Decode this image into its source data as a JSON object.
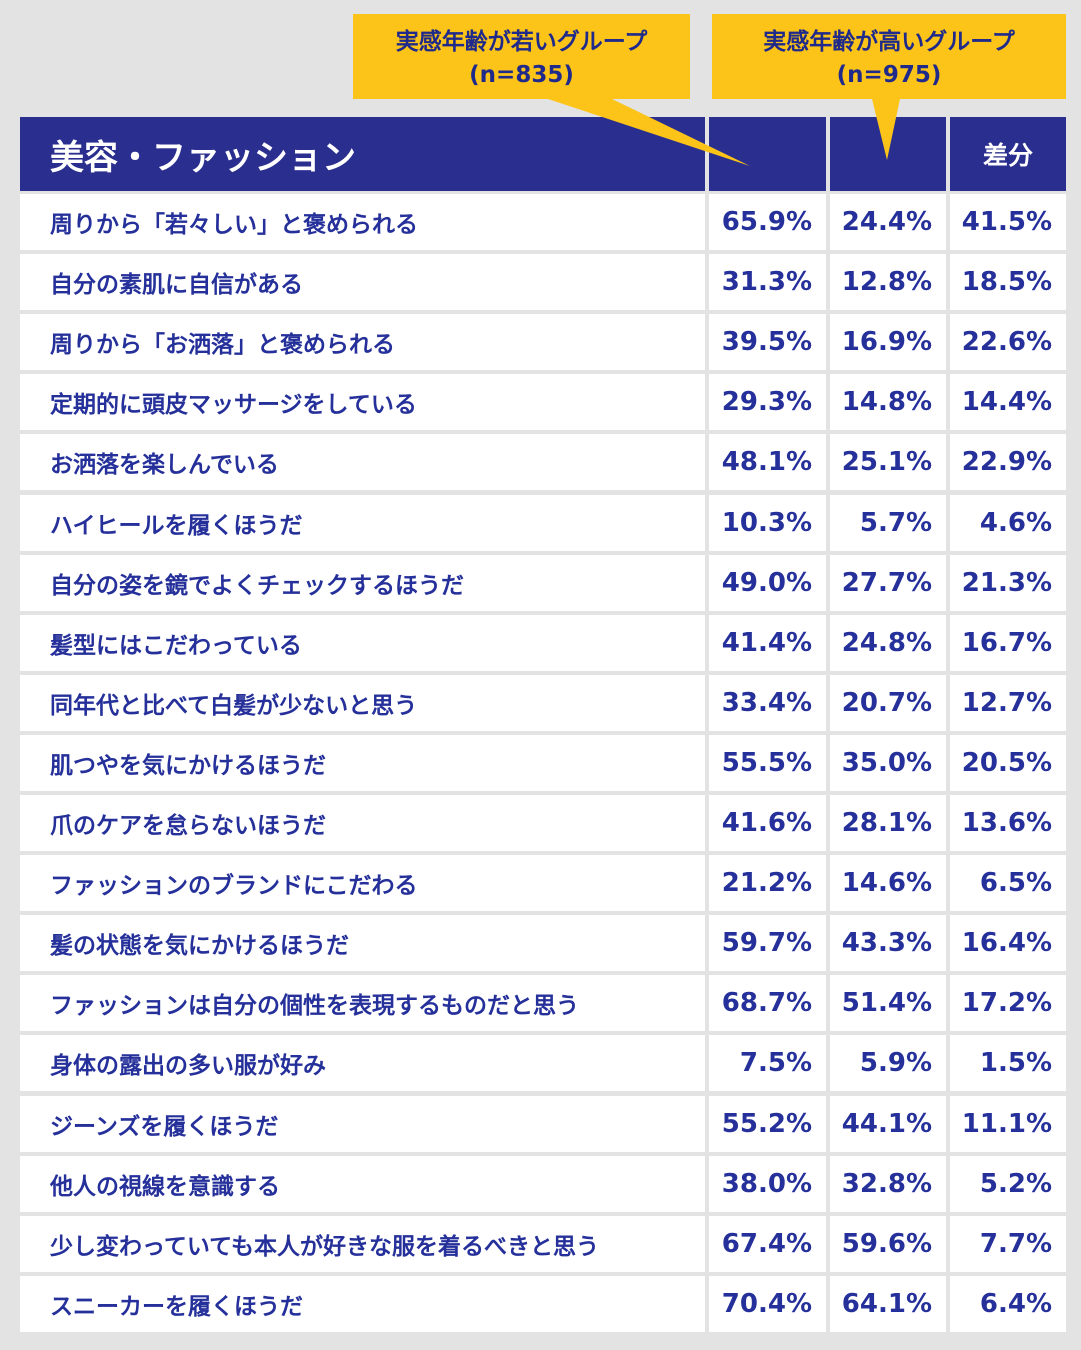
{
  "callouts": {
    "young": {
      "line1": "実感年齢が若いグループ",
      "line2": "(n=835)"
    },
    "old": {
      "line1": "実感年齢が高いグループ",
      "line2": "(n=975)"
    }
  },
  "colors": {
    "header_bg": "#2a2e8f",
    "text": "#25309a",
    "callout_bg": "#fcc419",
    "page_bg": "#e3e3e3",
    "cell_bg": "#ffffff"
  },
  "chart_data": {
    "type": "table",
    "title": "美容・ファッション",
    "columns": [
      "実感年齢が若いグループ(n=835)",
      "実感年齢が高いグループ(n=975)",
      "差分"
    ],
    "header": {
      "diff": "差分"
    },
    "rows": [
      {
        "label": "周りから「若々しい」と褒められる",
        "young": "65.9%",
        "old": "24.4%",
        "diff": "41.5%"
      },
      {
        "label": "自分の素肌に自信がある",
        "young": "31.3%",
        "old": "12.8%",
        "diff": "18.5%"
      },
      {
        "label": "周りから「お洒落」と褒められる",
        "young": "39.5%",
        "old": "16.9%",
        "diff": "22.6%"
      },
      {
        "label": "定期的に頭皮マッサージをしている",
        "young": "29.3%",
        "old": "14.8%",
        "diff": "14.4%"
      },
      {
        "label": "お洒落を楽しんでいる",
        "young": "48.1%",
        "old": "25.1%",
        "diff": "22.9%"
      },
      {
        "label": "ハイヒールを履くほうだ",
        "young": "10.3%",
        "old": "5.7%",
        "diff": "4.6%"
      },
      {
        "label": "自分の姿を鏡でよくチェックするほうだ",
        "young": "49.0%",
        "old": "27.7%",
        "diff": "21.3%"
      },
      {
        "label": "髪型にはこだわっている",
        "young": "41.4%",
        "old": "24.8%",
        "diff": "16.7%"
      },
      {
        "label": "同年代と比べて白髪が少ないと思う",
        "young": "33.4%",
        "old": "20.7%",
        "diff": "12.7%"
      },
      {
        "label": "肌つやを気にかけるほうだ",
        "young": "55.5%",
        "old": "35.0%",
        "diff": "20.5%"
      },
      {
        "label": "爪のケアを怠らないほうだ",
        "young": "41.6%",
        "old": "28.1%",
        "diff": "13.6%"
      },
      {
        "label": "ファッションのブランドにこだわる",
        "young": "21.2%",
        "old": "14.6%",
        "diff": "6.5%"
      },
      {
        "label": "髪の状態を気にかけるほうだ",
        "young": "59.7%",
        "old": "43.3%",
        "diff": "16.4%"
      },
      {
        "label": "ファッションは自分の個性を表現するものだと思う",
        "young": "68.7%",
        "old": "51.4%",
        "diff": "17.2%"
      },
      {
        "label": "身体の露出の多い服が好み",
        "young": "7.5%",
        "old": "5.9%",
        "diff": "1.5%"
      },
      {
        "label": "ジーンズを履くほうだ",
        "young": "55.2%",
        "old": "44.1%",
        "diff": "11.1%"
      },
      {
        "label": "他人の視線を意識する",
        "young": "38.0%",
        "old": "32.8%",
        "diff": "5.2%"
      },
      {
        "label": "少し変わっていても本人が好きな服を着るべきと思う",
        "young": "67.4%",
        "old": "59.6%",
        "diff": "7.7%"
      },
      {
        "label": "スニーカーを履くほうだ",
        "young": "70.4%",
        "old": "64.1%",
        "diff": "6.4%"
      }
    ]
  }
}
